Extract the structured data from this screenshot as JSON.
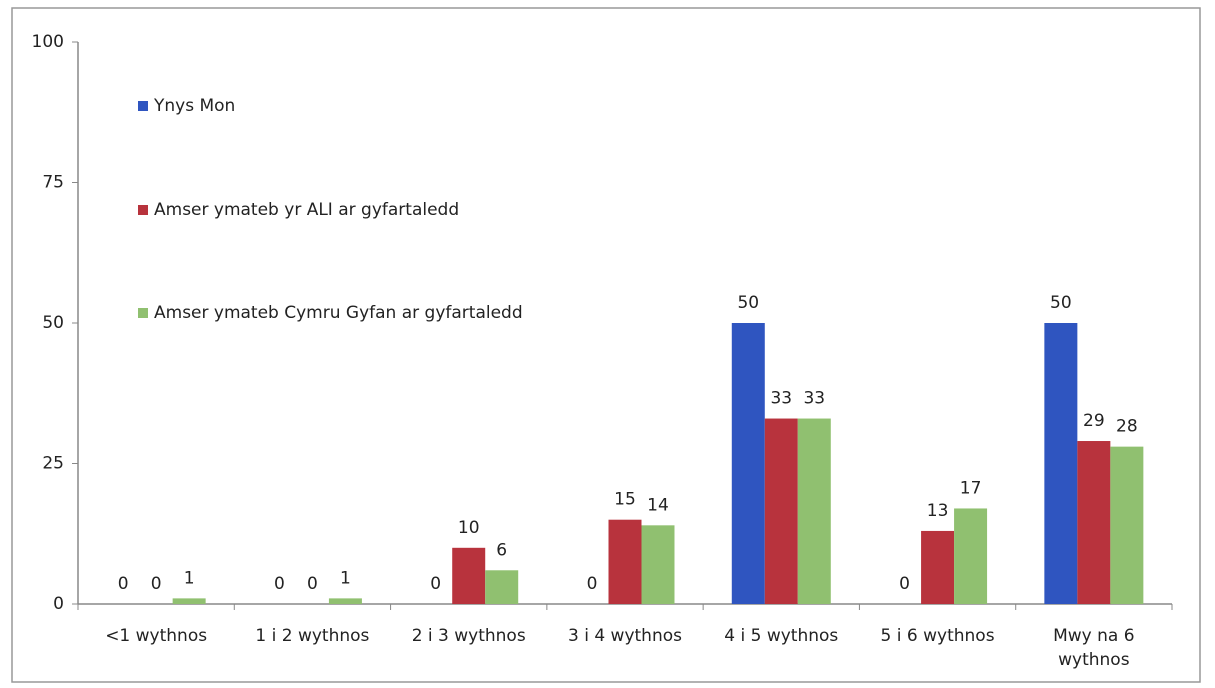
{
  "chart_data": {
    "type": "bar",
    "categories": [
      "<1 wythnos",
      "1 i 2 wythnos",
      "2 i 3 wythnos",
      "3 i 4 wythnos",
      "4 i 5 wythnos",
      "5 i 6 wythnos",
      "Mwy na 6 wythnos"
    ],
    "series": [
      {
        "name": "Ynys Mon",
        "color": "#2f55c0",
        "values": [
          0,
          0,
          0,
          0,
          50,
          0,
          50
        ]
      },
      {
        "name": "Amser ymateb yr ALI ar gyfartaledd",
        "color": "#b8333d",
        "values": [
          0,
          0,
          10,
          15,
          33,
          13,
          29
        ]
      },
      {
        "name": "Amser ymateb Cymru Gyfan ar gyfartaledd",
        "color": "#90c070",
        "values": [
          1,
          1,
          6,
          14,
          33,
          17,
          28
        ]
      }
    ],
    "ylim": [
      0,
      100
    ],
    "yticks": [
      0,
      25,
      50,
      75,
      100
    ],
    "grid": false,
    "legend": "upper left"
  }
}
